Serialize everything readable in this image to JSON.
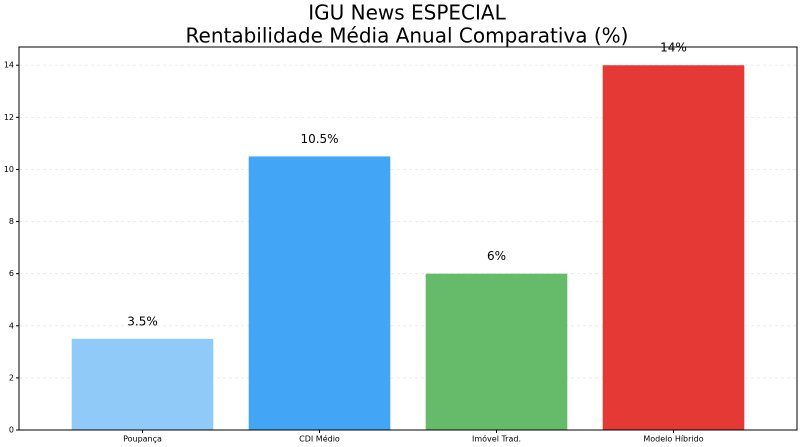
{
  "chart_data": {
    "type": "bar",
    "title": "IGU News ESPECIAL",
    "subtitle": "Rentabilidade Média Anual Comparativa (%)",
    "categories": [
      "Poupança",
      "CDI Médio",
      "Imóvel Trad.",
      "Modelo Híbrido"
    ],
    "values": [
      3.5,
      10.5,
      6,
      14
    ],
    "value_labels": [
      "3.5%",
      "10.5%",
      "6%",
      "14%"
    ],
    "colors": [
      "#90caf9",
      "#42a5f5",
      "#66bb6a",
      "#e53935"
    ],
    "ylim": [
      0,
      14.7
    ],
    "yticks": [
      0,
      2,
      4,
      6,
      8,
      10,
      12,
      14
    ],
    "grid": true
  }
}
